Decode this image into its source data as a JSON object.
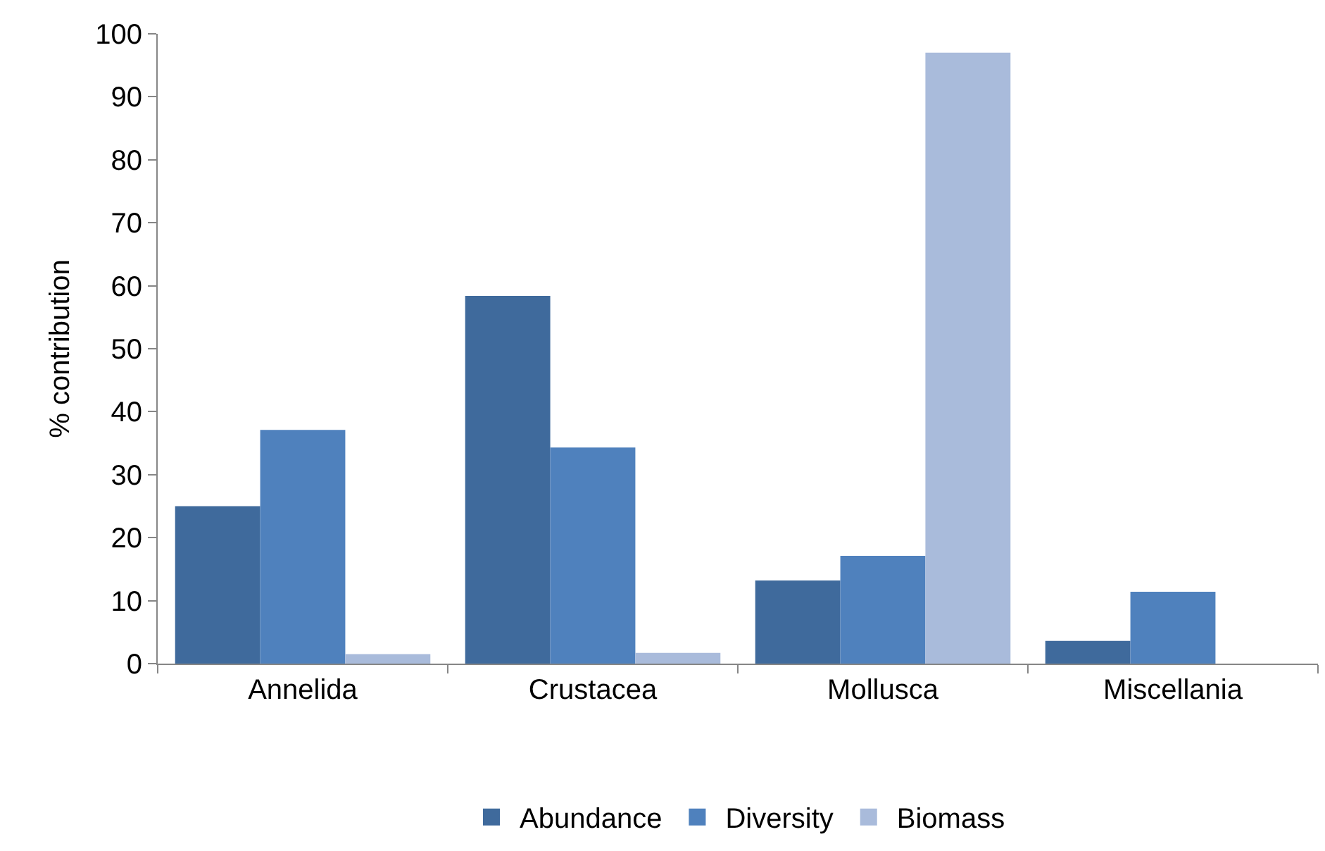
{
  "chart_data": {
    "type": "bar",
    "ylabel": "% contribution",
    "categories": [
      "Annelida",
      "Crustacea",
      "Mollusca",
      "Miscellania"
    ],
    "series": [
      {
        "name": "Abundance",
        "color": "#3f6a9c",
        "values": [
          25,
          58.4,
          13.2,
          3.6
        ]
      },
      {
        "name": "Diversity",
        "color": "#4f81bd",
        "values": [
          37.1,
          34.3,
          17.1,
          11.4
        ]
      },
      {
        "name": "Biomass",
        "color": "#a9bbdb",
        "values": [
          1.5,
          1.7,
          97,
          0
        ]
      }
    ],
    "ylim": [
      0,
      100
    ],
    "yticks": [
      0,
      10,
      20,
      30,
      40,
      50,
      60,
      70,
      80,
      90,
      100
    ],
    "grid": false,
    "legend": "bottom"
  }
}
